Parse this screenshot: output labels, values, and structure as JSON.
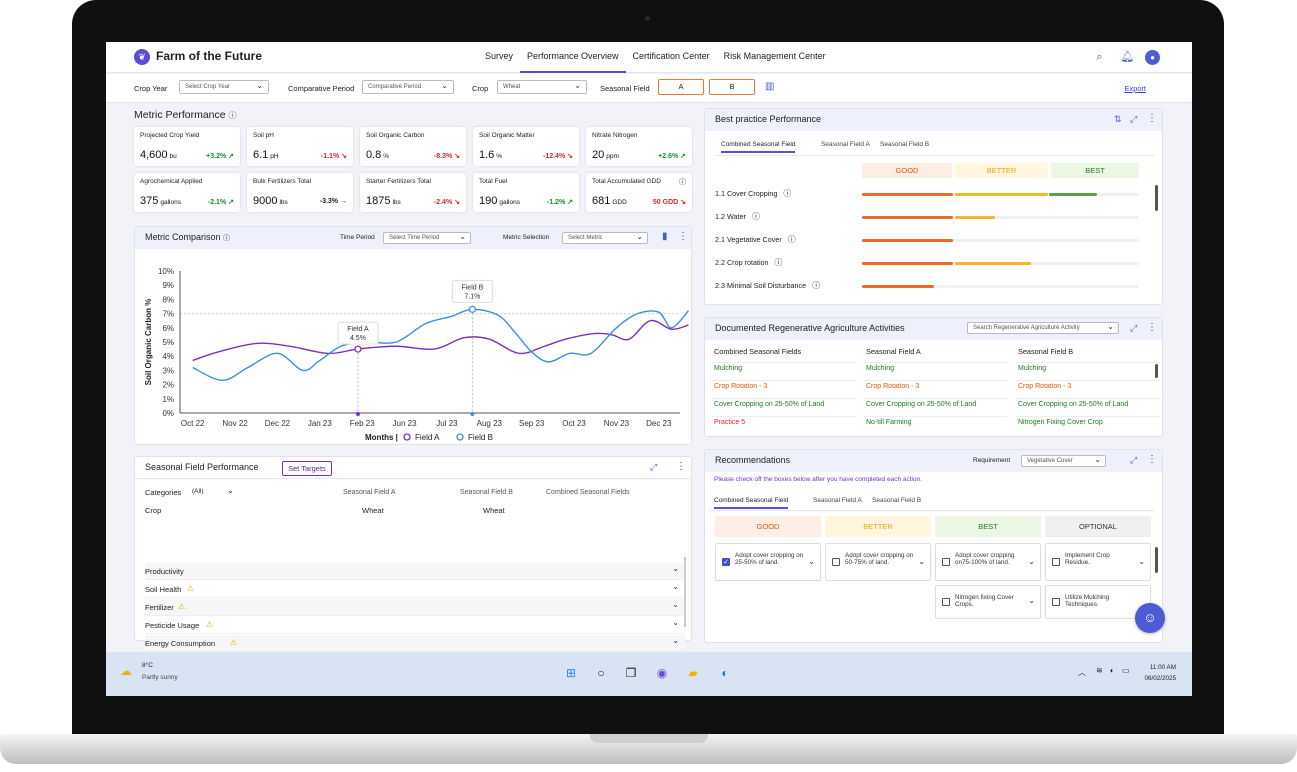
{
  "app": {
    "title": "Farm of the Future"
  },
  "nav": [
    "Survey",
    "Performance Overview",
    "Certification Center",
    "Risk Management Center"
  ],
  "filters": {
    "crop_year_label": "Crop Year",
    "crop_year_value": "Select Crop Year",
    "period_label": "Comparative Period",
    "period_value": "Comparative Period",
    "crop_label": "Crop",
    "crop_value": "Wheat",
    "field_label": "Seasonal Field",
    "field_a": "A",
    "field_b": "B",
    "export": "Export"
  },
  "metric_performance": {
    "title": "Metric Performance",
    "cards": [
      {
        "label": "Projected Crop Yield",
        "value": "4,600",
        "unit": "bu",
        "change": "+3.2%",
        "trend": "up"
      },
      {
        "label": "Soil pH",
        "value": "6.1",
        "unit": "pH",
        "change": "-1.1%",
        "trend": "down"
      },
      {
        "label": "Soil Organic Carbon",
        "value": "0.8",
        "unit": "%",
        "change": "-8.3%",
        "trend": "down"
      },
      {
        "label": "Soil Organic Matter",
        "value": "1.6",
        "unit": "%",
        "change": "-12.4%",
        "trend": "down"
      },
      {
        "label": "Nitrate Nitrogen",
        "value": "20",
        "unit": "ppm",
        "change": "+2.6%",
        "trend": "up"
      },
      {
        "label": "Agrochemical Applied",
        "value": "375",
        "unit": "gallons",
        "change": "-2.1%",
        "trend": "up"
      },
      {
        "label": "Bulk Fertilizers Total",
        "value": "9000",
        "unit": "lbs",
        "change": "-3.3%",
        "trend": "neutral"
      },
      {
        "label": "Starter Fertilizers Total",
        "value": "1875",
        "unit": "lbs",
        "change": "-2.4%",
        "trend": "down"
      },
      {
        "label": "Total Fuel",
        "value": "190",
        "unit": "gallons",
        "change": "-1.2%",
        "trend": "up"
      },
      {
        "label": "Total Accumulated GDD",
        "value": "681",
        "unit": "GDD",
        "change": "50 GDD",
        "trend": "down"
      }
    ]
  },
  "metric_comparison": {
    "title": "Metric Comparison",
    "time_label": "Time Period",
    "time_value": "Select Time Period",
    "metric_label": "Metric Selection",
    "metric_value": "Select Metric",
    "legend_title": "Months |",
    "tooltip_a": {
      "name": "Field A",
      "value": "4.5%"
    },
    "tooltip_b": {
      "name": "Field B",
      "value": "7.1%"
    }
  },
  "chart_data": {
    "type": "line",
    "ylabel": "Soil Organic Carbon %",
    "xlabel": "Months",
    "ylim": [
      0,
      10
    ],
    "yticks": [
      "0%",
      "1%",
      "2%",
      "3%",
      "4%",
      "5%",
      "6%",
      "7%",
      "8%",
      "9%",
      "10%"
    ],
    "categories": [
      "Oct 22",
      "Nov 22",
      "Dec 22",
      "Jan 23",
      "Feb 23",
      "Jun 23",
      "Jul 23",
      "Aug 23",
      "Sep 23",
      "Oct 23",
      "Nov 23",
      "Dec 23"
    ],
    "series": [
      {
        "name": "Field A",
        "color": "#7b2fbf",
        "points": [
          [
            0,
            3.7
          ],
          [
            0.6,
            4.3
          ],
          [
            1.5,
            4.9
          ],
          [
            2.3,
            4.7
          ],
          [
            3.2,
            4.2
          ],
          [
            3.9,
            4.5
          ],
          [
            4.8,
            4.7
          ],
          [
            5.7,
            4.5
          ],
          [
            6.4,
            5.3
          ],
          [
            7.0,
            5.2
          ],
          [
            7.7,
            4.2
          ],
          [
            8.3,
            4.7
          ],
          [
            8.8,
            5.2
          ],
          [
            9.5,
            5.6
          ],
          [
            9.9,
            5.5
          ],
          [
            10.3,
            5.2
          ],
          [
            10.8,
            6.5
          ],
          [
            11.3,
            5.9
          ],
          [
            11.7,
            6.2
          ]
        ]
      },
      {
        "name": "Field B",
        "color": "#3e8ede",
        "points": [
          [
            0,
            3.2
          ],
          [
            0.7,
            2.3
          ],
          [
            1.3,
            3.2
          ],
          [
            2.0,
            4.2
          ],
          [
            2.6,
            3.0
          ],
          [
            3.0,
            3.7
          ],
          [
            3.5,
            4.7
          ],
          [
            4.1,
            5.0
          ],
          [
            4.8,
            5.0
          ],
          [
            5.5,
            6.3
          ],
          [
            6.1,
            6.8
          ],
          [
            6.6,
            7.3
          ],
          [
            7.2,
            6.9
          ],
          [
            7.6,
            5.7
          ],
          [
            8.0,
            4.3
          ],
          [
            8.4,
            3.6
          ],
          [
            8.9,
            4.2
          ],
          [
            9.4,
            4.2
          ],
          [
            10.0,
            6.0
          ],
          [
            10.5,
            7.0
          ],
          [
            11.0,
            7.1
          ],
          [
            11.3,
            6.0
          ],
          [
            11.7,
            7.2
          ]
        ]
      }
    ]
  },
  "seasonal": {
    "title": "Seasonal Field Performance",
    "set_targets": "Set Targets",
    "categories_label": "Categories",
    "categories_value": "(All)",
    "col_a": "Seasonal Field A",
    "col_b": "Seasonal Field B",
    "col_c": "Combined Seasonal Fields",
    "crop_label": "Crop",
    "crop_a": "Wheat",
    "crop_b": "Wheat",
    "rows": [
      "Productivity",
      "Soil Health",
      "Fertilizer",
      "Pesticide Usage",
      "Energy Consumption"
    ]
  },
  "best_practice": {
    "title": "Best practice Performance",
    "tabs": [
      "Combined Seasonal Field",
      "Seasonal Field A",
      "Seasonal Field B"
    ],
    "levels": [
      "GOOD",
      "BETTER",
      "BEST"
    ],
    "items": [
      {
        "label": "1.1 Cover Cropping",
        "score": 0.85
      },
      {
        "label": "1.2 Water",
        "score": 0.48
      },
      {
        "label": "2.1 Vegetative Cover",
        "score": 0.33
      },
      {
        "label": "2.2 Crop rotation",
        "score": 0.61
      },
      {
        "label": "2.3 Minimal Soil Disturbance",
        "score": 0.26
      }
    ]
  },
  "regen": {
    "title": "Documented Regenerative Agriculture Activities",
    "search": "Search Regenerative Agriculture Activity",
    "cols": [
      "Combined Seasonal Fields",
      "Seasonal Field A",
      "Seasonal Field B"
    ],
    "rows": [
      [
        "Mulching",
        "Mulching",
        "Mulching"
      ],
      [
        "Crop Rotation - 3",
        "Crop Rotation - 3",
        "Crop Rotation - 3"
      ],
      [
        "Cover Cropping on 25-50% of Land",
        "Cover Cropping on 25-50% of Land",
        "Cover Cropping on 25-50% of Land"
      ],
      [
        "Practice 5",
        "No-till Farming",
        "Nitrogen Fixing Cover Crop"
      ]
    ]
  },
  "recommendations": {
    "title": "Recommendations",
    "req_label": "Requirement",
    "req_value": "Vegetative Cover",
    "note": "Please check off the boxes below after you have completed each action.",
    "tabs": [
      "Combined Seasonal Field",
      "Seasonal Field A",
      "Seasonal Field B"
    ],
    "levels": [
      "GOOD",
      "BETTER",
      "BEST",
      "OPTIONAL"
    ],
    "items": [
      "Adopt cover cropping on 25-50% of land.",
      "Adopt cover cropping on 50-75% of land.",
      "Adopt cover cropping on75-100% of land.",
      "Implement Crop Residue.",
      "Nitrogen fixing Cover Crops.",
      "Utilize Mulching Techniques."
    ]
  },
  "taskbar": {
    "temp": "8°C",
    "weather": "Partly sunny",
    "time": "11:00 AM",
    "date": "06/02/2025"
  }
}
